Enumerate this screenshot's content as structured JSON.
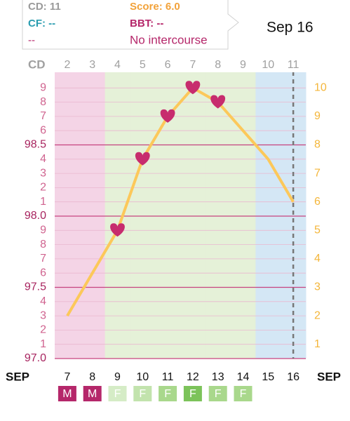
{
  "tooltip": {
    "cd": "CD: 11",
    "score": "Score: 6.0",
    "cf": "CF: --",
    "bbt": "BBT: --",
    "cervical": "--",
    "intercourse": "No intercourse"
  },
  "selected_date": "Sep 16",
  "chart_data": {
    "type": "line",
    "cd_label": "CD",
    "categories": [
      "2",
      "3",
      "4",
      "5",
      "6",
      "7",
      "8",
      "9",
      "10",
      "11"
    ],
    "month_label": "SEP",
    "dates": [
      "7",
      "8",
      "9",
      "10",
      "11",
      "12",
      "13",
      "14",
      "15",
      "16"
    ],
    "series": [
      {
        "color": "#fcc85a",
        "axis": "y2",
        "values": [
          2.0,
          3.5,
          5.0,
          7.5,
          9.0,
          10.0,
          9.5,
          8.5,
          7.5,
          6.0
        ]
      }
    ],
    "intercourse": [
      false,
      false,
      true,
      true,
      true,
      true,
      true,
      false,
      false,
      false
    ],
    "heart_color": "#c72c6e",
    "day_colors": [
      "#f4d4e6",
      "#f4d4e6",
      "#e5f1d8",
      "#e5f1d8",
      "#e5f1d8",
      "#e5f1d8",
      "#e5f1d8",
      "#e5f1d8",
      "#d4e7f5",
      "#d4e7f5"
    ],
    "flow_labels": [
      "M",
      "M",
      "F",
      "F",
      "F",
      "F",
      "F",
      "F",
      null,
      null
    ],
    "flow_colors": [
      "#b5276a",
      "#b5276a",
      "#d5ecc6",
      "#c2e3ad",
      "#a9d88c",
      "#7cc35a",
      "#a9d88c",
      "#a9d88c",
      null,
      null
    ],
    "today_index": 9,
    "ylim": [
      97.0,
      99.0
    ],
    "yticks": [
      {
        "value": 97.0,
        "label": "97.0"
      },
      {
        "value": 97.1,
        "label": "1"
      },
      {
        "value": 97.2,
        "label": "2"
      },
      {
        "value": 97.3,
        "label": "3"
      },
      {
        "value": 97.4,
        "label": "4"
      },
      97.5,
      {
        "value": 97.6,
        "label": "6"
      },
      {
        "value": 97.7,
        "label": "7"
      },
      {
        "value": 97.8,
        "label": "8"
      },
      {
        "value": 97.9,
        "label": "9"
      },
      {
        "value": 98.0,
        "label": "98.0"
      },
      {
        "value": 98.1,
        "label": "1"
      },
      {
        "value": 98.2,
        "label": "2"
      },
      {
        "value": 98.3,
        "label": "3"
      },
      {
        "value": 98.4,
        "label": "4"
      },
      98.5,
      {
        "value": 98.6,
        "label": "6"
      },
      {
        "value": 98.7,
        "label": "7"
      },
      {
        "value": 98.8,
        "label": "8"
      },
      {
        "value": 98.9,
        "label": "9"
      }
    ],
    "y2lim": [
      0.5,
      10.5
    ],
    "y2ticks": [
      1,
      2,
      3,
      4,
      5,
      6,
      7,
      8,
      9,
      10
    ]
  }
}
